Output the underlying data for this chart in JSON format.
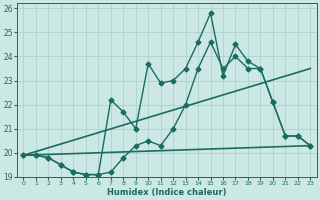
{
  "xlabel": "Humidex (Indice chaleur)",
  "bg_color": "#cce8e4",
  "line_color": "#1a6b60",
  "grid_color": "#aaccca",
  "xlim": [
    -0.5,
    23.5
  ],
  "ylim": [
    19,
    26.2
  ],
  "xticks": [
    0,
    1,
    2,
    3,
    4,
    5,
    6,
    7,
    8,
    9,
    10,
    11,
    12,
    13,
    14,
    15,
    16,
    17,
    18,
    19,
    20,
    21,
    22,
    23
  ],
  "yticks": [
    19,
    20,
    21,
    22,
    23,
    24,
    25,
    26
  ],
  "series": [
    {
      "x": [
        0,
        1,
        2,
        3,
        4,
        5,
        6,
        7,
        8,
        9,
        10,
        11,
        12,
        13,
        14,
        15,
        16,
        17,
        18,
        19,
        20,
        21,
        22,
        23
      ],
      "y": [
        19.9,
        19.9,
        19.8,
        19.5,
        19.2,
        19.1,
        19.1,
        22.2,
        21.7,
        21.0,
        23.7,
        22.9,
        23.0,
        23.5,
        24.6,
        25.8,
        23.2,
        24.5,
        23.8,
        23.5,
        22.1,
        20.7,
        20.7,
        20.3
      ],
      "marker": "D",
      "markersize": 2.5,
      "linewidth": 1.0,
      "has_marker": true
    },
    {
      "x": [
        0,
        1,
        2,
        3,
        4,
        5,
        6,
        7,
        8,
        9,
        10,
        11,
        12,
        13,
        14,
        15,
        16,
        17,
        18,
        19,
        20,
        21,
        22,
        23
      ],
      "y": [
        19.9,
        19.9,
        19.8,
        19.5,
        19.2,
        19.1,
        19.1,
        19.2,
        19.8,
        20.3,
        20.5,
        20.3,
        21.0,
        22.0,
        23.5,
        24.6,
        23.5,
        24.0,
        23.5,
        23.5,
        22.1,
        20.7,
        20.7,
        20.3
      ],
      "marker": "D",
      "markersize": 2.5,
      "linewidth": 1.0,
      "has_marker": true
    },
    {
      "x": [
        0,
        23
      ],
      "y": [
        19.9,
        23.5
      ],
      "marker": null,
      "markersize": 0,
      "linewidth": 1.2,
      "has_marker": false
    },
    {
      "x": [
        0,
        23
      ],
      "y": [
        19.9,
        20.3
      ],
      "marker": null,
      "markersize": 0,
      "linewidth": 1.2,
      "has_marker": false
    }
  ]
}
